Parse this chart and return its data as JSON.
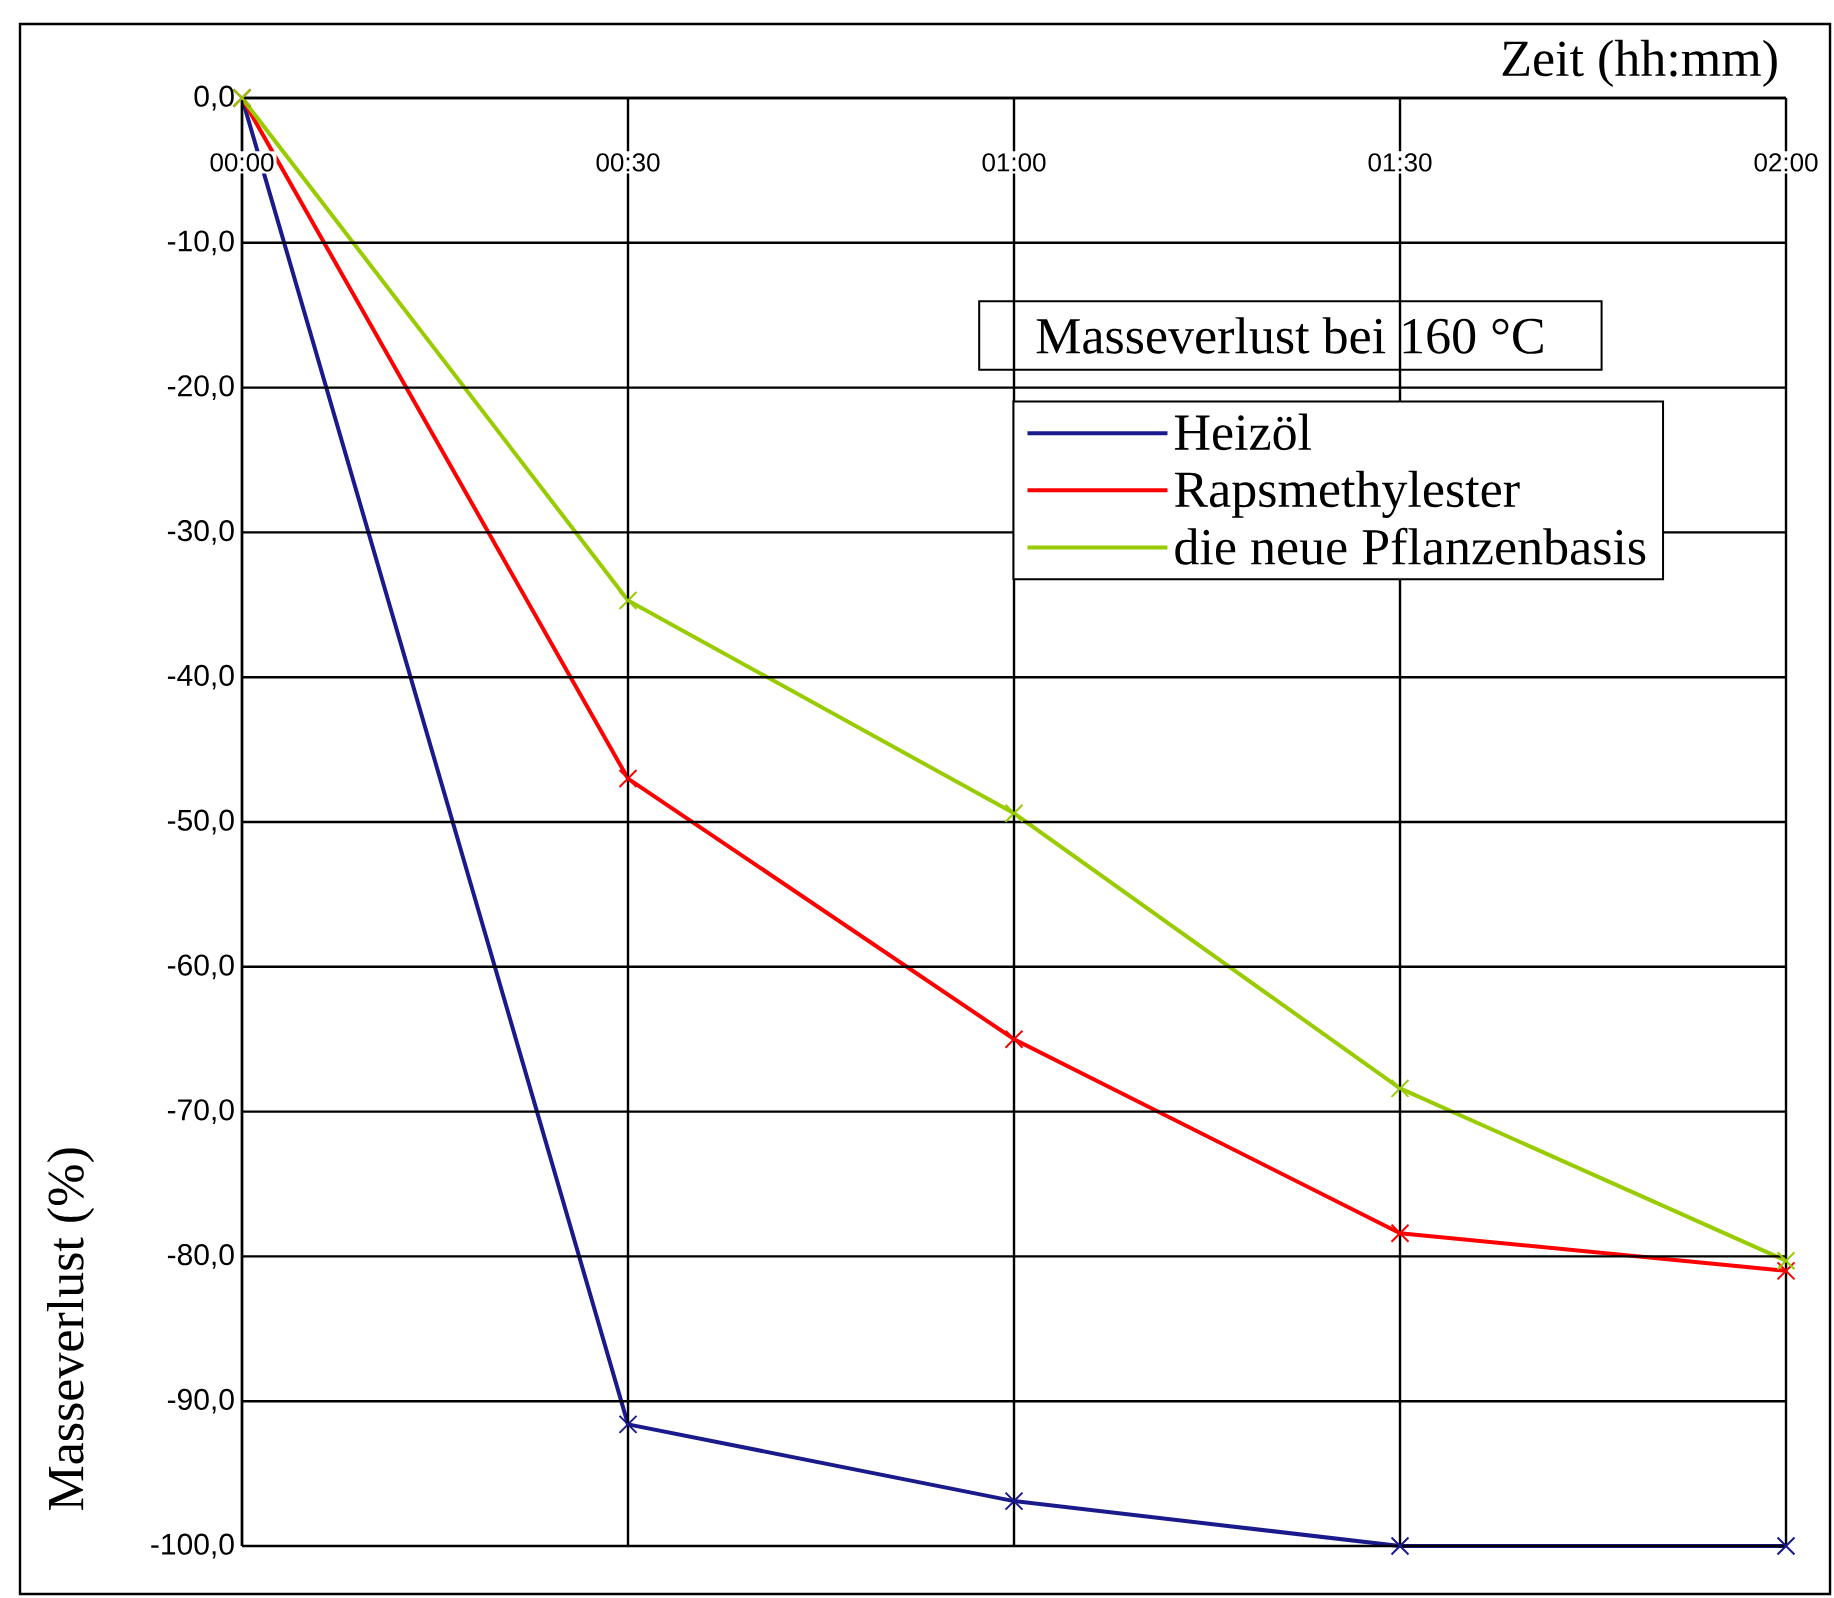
{
  "chart_data": {
    "type": "line",
    "title": "Masseverlust bei 160 °C",
    "xlabel": "Zeit (hh:mm)",
    "ylabel": "Masseverlust  (%)",
    "x": [
      0,
      0.5,
      1,
      1.5,
      2
    ],
    "series": [
      {
        "name": "Heizöl",
        "color": "#1a1a8c",
        "values": [
          0,
          -91.6,
          -96.9,
          -100,
          -100
        ]
      },
      {
        "name": "Rapsmethylester",
        "color": "#ff0000",
        "values": [
          0,
          -47,
          -65,
          -78.4,
          -81
        ]
      },
      {
        "name": "die neue Pflanzenbasis",
        "color": "#99cc00",
        "values": [
          0,
          -34.7,
          -49.4,
          -68.4,
          -80.3
        ]
      }
    ],
    "xlim": [
      0,
      2
    ],
    "ylim": [
      -100,
      0
    ],
    "xticks": [
      {
        "value": 0,
        "label": "00:00"
      },
      {
        "value": 0.5,
        "label": "00:30"
      },
      {
        "value": 1,
        "label": "01:00"
      },
      {
        "value": 1.5,
        "label": "01:30"
      },
      {
        "value": 2,
        "label": "02:00"
      }
    ],
    "yticks": [
      {
        "value": 0,
        "label": "0,0"
      },
      {
        "value": -10,
        "label": "-10,0"
      },
      {
        "value": -20,
        "label": "-20,0"
      },
      {
        "value": -30,
        "label": "-30,0"
      },
      {
        "value": -40,
        "label": "-40,0"
      },
      {
        "value": -50,
        "label": "-50,0"
      },
      {
        "value": -60,
        "label": "-60,0"
      },
      {
        "value": -70,
        "label": "-70,0"
      },
      {
        "value": -80,
        "label": "-80,0"
      },
      {
        "value": -90,
        "label": "-90,0"
      },
      {
        "value": -100,
        "label": "-100,0"
      }
    ],
    "grid": true,
    "legend": "top right",
    "marker": "cross"
  }
}
